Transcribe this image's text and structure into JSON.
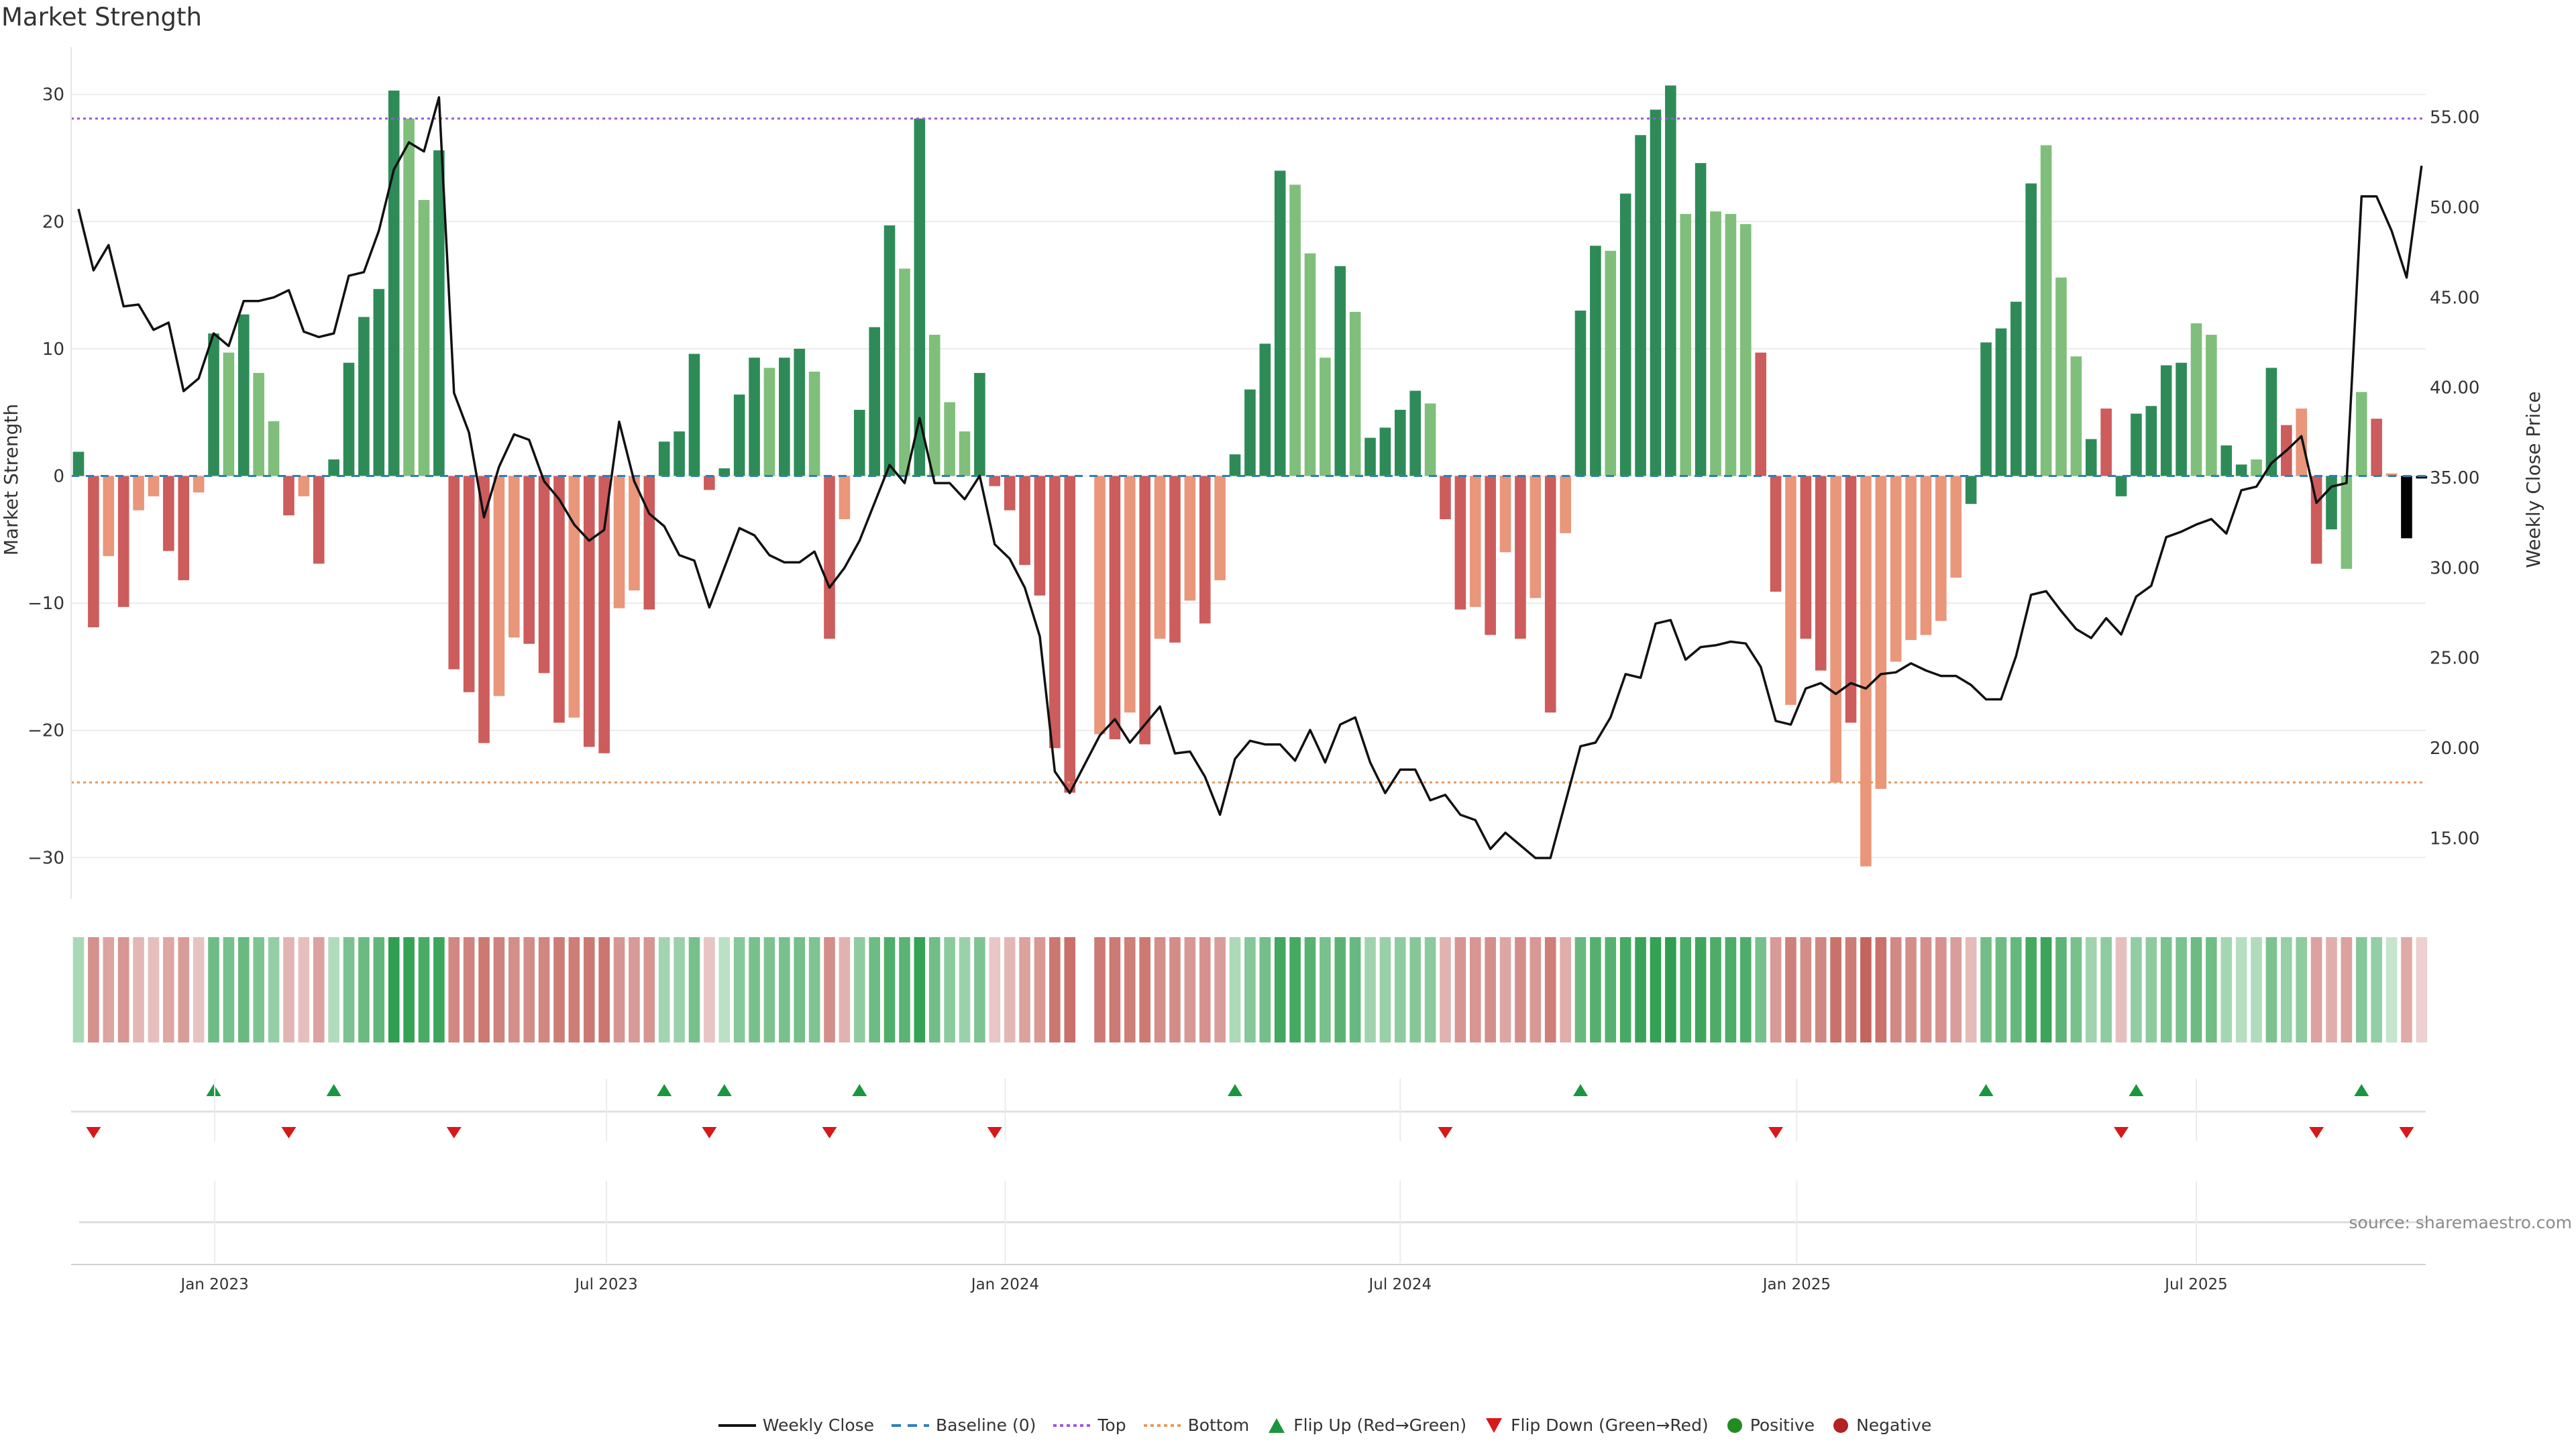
{
  "title": "Market Strength",
  "source": "source: sharemaestro.com",
  "legend": {
    "weekly_close": "Weekly Close",
    "baseline": "Baseline (0)",
    "top": "Top",
    "bottom": "Bottom",
    "flip_up": "Flip Up (Red→Green)",
    "flip_down": "Flip Down (Green→Red)",
    "positive": "Positive",
    "negative": "Negative"
  },
  "colors": {
    "strong_pos": "#2e8b57",
    "weak_pos": "#7fbf7b",
    "strong_neg": "#cd5c5c",
    "weak_neg": "#e9967a",
    "top": "#9b59d6",
    "bottom": "#e8995c",
    "baseline": "#2f7fb8",
    "flip_up": "#1a9641",
    "flip_down": "#d7191c",
    "positive": "#228b22",
    "negative": "#b22222",
    "line": "#111111"
  },
  "chart_data": {
    "type": "bar",
    "title": "Market Strength",
    "ylabel": "Market Strength",
    "y2label": "Weekly Close Price",
    "ylim": [
      -33,
      33
    ],
    "y2lim": [
      11.6,
      60.4
    ],
    "yticks": [
      30,
      20,
      10,
      0,
      -10,
      -20,
      -30
    ],
    "yticklabels": [
      "30",
      "20",
      "10",
      "0",
      "−10",
      "−20",
      "−30"
    ],
    "y2ticks": [
      55,
      50,
      45,
      40,
      35,
      30,
      25,
      20,
      15
    ],
    "y2ticklabels": [
      "55.00",
      "50.00",
      "45.00",
      "40.00",
      "35.00",
      "30.00",
      "25.00",
      "20.00",
      "15.00"
    ],
    "top_level": 28.1,
    "bottom_level": -24.1,
    "xticks": [
      {
        "label": "Jan 2023",
        "week": 9.07
      },
      {
        "label": "Jul 2023",
        "week": 35.15
      },
      {
        "label": "Jan 2024",
        "week": 61.7
      },
      {
        "label": "Jul 2024",
        "week": 88.0
      },
      {
        "label": "Jan 2025",
        "week": 114.4
      },
      {
        "label": "Jul 2025",
        "week": 141.0
      }
    ],
    "strength": [
      1.9,
      -11.9,
      -6.3,
      -10.3,
      -2.7,
      -1.6,
      -5.9,
      -8.2,
      -1.3,
      11.2,
      9.7,
      12.7,
      8.1,
      4.3,
      -3.1,
      -1.6,
      -6.9,
      1.3,
      8.9,
      12.5,
      14.7,
      30.3,
      28.1,
      21.7,
      25.6,
      -15.2,
      -17,
      -21,
      -17.3,
      -12.7,
      -13.2,
      -15.5,
      -19.4,
      -19,
      -21.3,
      -21.8,
      -10.4,
      -9,
      -10.5,
      2.7,
      3.5,
      9.6,
      -1.1,
      0.6,
      6.4,
      9.3,
      8.5,
      9.3,
      10,
      8.2,
      -12.8,
      -3.4,
      5.2,
      11.7,
      19.7,
      16.3,
      28.1,
      11.1,
      5.8,
      3.5,
      8.1,
      -0.8,
      -2.7,
      -7,
      -9.4,
      -21.4,
      -24.9,
      0,
      -20.3,
      -20.7,
      -18.6,
      -21.1,
      -12.8,
      -13.1,
      -9.8,
      -11.6,
      -8.2,
      1.7,
      6.8,
      10.4,
      24,
      22.9,
      17.5,
      9.3,
      16.5,
      12.9,
      3,
      3.8,
      5.2,
      6.7,
      5.7,
      -3.4,
      -10.5,
      -10.3,
      -12.5,
      -6,
      -12.8,
      -9.6,
      -18.6,
      -4.5,
      13,
      18.1,
      17.7,
      22.2,
      26.8,
      28.8,
      30.7,
      20.6,
      24.6,
      20.8,
      20.6,
      19.8,
      9.7,
      -9.1,
      -18,
      -12.8,
      -15.3,
      -24.1,
      -19.4,
      -30.7,
      -24.6,
      -14.6,
      -12.9,
      -12.5,
      -11.4,
      -8,
      -2.2,
      10.5,
      11.6,
      13.7,
      23,
      26,
      15.6,
      9.4,
      2.9,
      5.3,
      -1.6,
      4.9,
      5.5,
      8.7,
      8.9,
      12,
      11.1,
      2.4,
      0.9,
      1.3,
      8.5,
      4,
      5.3,
      -6.9,
      -4.2,
      -7.3,
      6.6,
      4.5,
      0.2,
      -4.9,
      -0.2
    ],
    "strength_style": "GRrRrrRRrGgGggRrRGGGGGggGRRRrrRRRrRRrrRGGGRGGGgGGgRrGGGgGgggGRRRRRRRrRrRrRrRrGGGGgggGgGGGGgRRrRrRrRrGGgGGGGgGgggRRrRRrRrrrrrrrGGGGGgggGRGGGGGggGGgGRrRGggRr",
    "weekly_close": [
      49.9,
      46.5,
      47.9,
      44.5,
      44.6,
      43.2,
      43.6,
      39.8,
      40.5,
      43.0,
      42.3,
      44.8,
      44.8,
      45.0,
      45.4,
      43.1,
      42.8,
      43.0,
      46.2,
      46.4,
      48.7,
      52.1,
      53.6,
      53.1,
      56.1,
      39.7,
      37.5,
      32.8,
      35.6,
      37.4,
      37.1,
      34.8,
      33.8,
      32.4,
      31.5,
      32.1,
      38.1,
      34.8,
      33.0,
      32.3,
      30.7,
      30.4,
      27.8,
      30.0,
      32.2,
      31.8,
      30.7,
      30.3,
      30.3,
      30.9,
      28.9,
      30.0,
      31.5,
      33.6,
      35.7,
      34.7,
      38.3,
      34.7,
      34.7,
      33.8,
      35.1,
      31.3,
      30.5,
      28.9,
      26.2,
      18.7,
      17.5,
      19.1,
      20.7,
      21.6,
      20.3,
      21.3,
      22.3,
      19.7,
      19.8,
      18.4,
      16.3,
      19.4,
      20.4,
      20.2,
      20.2,
      19.3,
      21.0,
      19.2,
      21.3,
      21.7,
      19.2,
      17.5,
      18.8,
      18.8,
      17.1,
      17.4,
      16.3,
      16.0,
      14.4,
      15.3,
      14.6,
      13.9,
      13.9,
      17.0,
      20.1,
      20.3,
      21.7,
      24.1,
      23.9,
      26.9,
      27.1,
      24.9,
      25.6,
      25.7,
      25.9,
      25.8,
      24.5,
      21.5,
      21.3,
      23.3,
      23.6,
      23.0,
      23.6,
      23.3,
      24.1,
      24.2,
      24.7,
      24.3,
      24.0,
      24.0,
      23.5,
      22.7,
      22.7,
      25.1,
      28.5,
      28.7,
      27.6,
      26.6,
      26.1,
      27.2,
      26.3,
      28.4,
      29.0,
      31.7,
      32.0,
      32.4,
      32.7,
      31.9,
      34.3,
      34.5,
      35.8,
      36.5,
      37.3,
      33.6,
      34.5,
      34.7,
      50.6,
      50.6,
      48.7,
      46.1,
      52.3
    ]
  }
}
